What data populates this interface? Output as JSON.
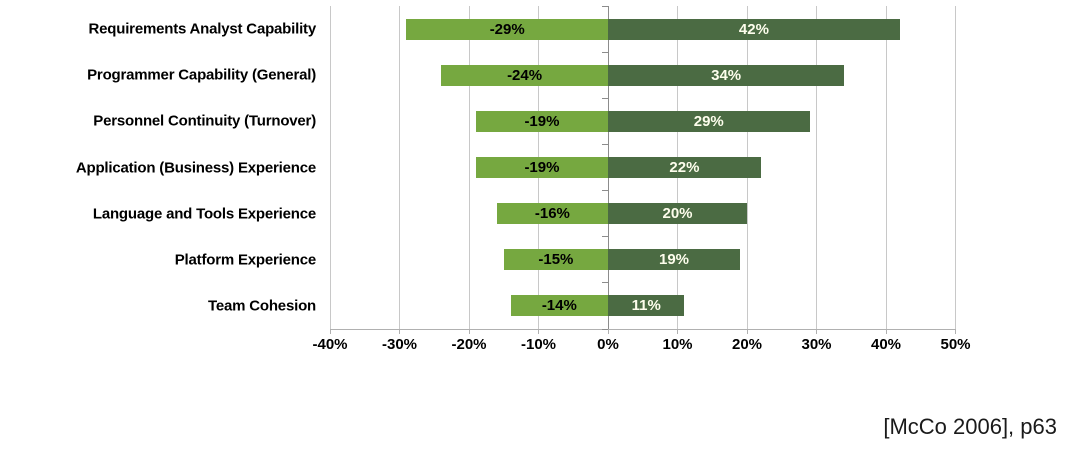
{
  "chart_data": {
    "type": "bar",
    "orientation": "horizontal-diverging",
    "title": "",
    "xlabel": "",
    "ylabel": "",
    "grid": true,
    "categories": [
      "Requirements Analyst Capability",
      "Programmer Capability (General)",
      "Personnel Continuity (Turnover)",
      "Application (Business) Experience",
      "Language and Tools Experience",
      "Platform Experience",
      "Team Cohesion"
    ],
    "series": [
      {
        "name": "negative-impact",
        "values": [
          -29,
          -24,
          -19,
          -19,
          -16,
          -15,
          -14
        ],
        "labels": [
          "-29%",
          "-24%",
          "-19%",
          "-19%",
          "-16%",
          "-15%",
          "-14%"
        ],
        "color": "#76a840",
        "label_color": "#000000"
      },
      {
        "name": "positive-impact",
        "values": [
          42,
          34,
          29,
          22,
          20,
          19,
          11
        ],
        "labels": [
          "42%",
          "34%",
          "29%",
          "22%",
          "20%",
          "19%",
          "11%"
        ],
        "color": "#4b6b43",
        "label_color": "#fdfdec"
      }
    ],
    "axis": {
      "min": -40,
      "max": 50,
      "step": 10,
      "tick_labels": [
        "-40%",
        "-30%",
        "-20%",
        "-10%",
        "0%",
        "10%",
        "20%",
        "30%",
        "40%",
        "50%"
      ]
    },
    "colors": {
      "gridline": "#c8c8c8",
      "zero_axis": "#8c8c8c",
      "bottom_axis": "#b0b0b0",
      "text": "#000000"
    }
  },
  "caption": {
    "text": "[McCo 2006], p63"
  }
}
